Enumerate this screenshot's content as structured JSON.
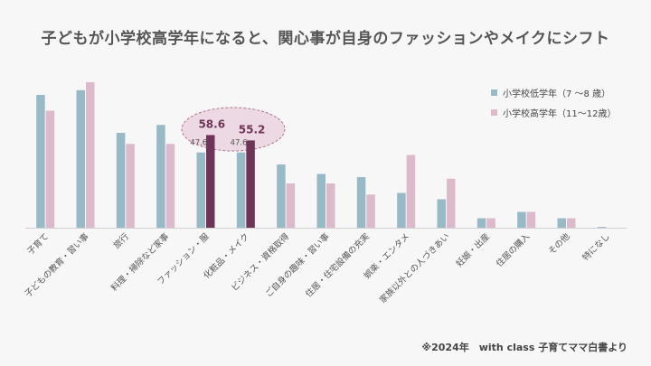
{
  "title": "子どもが小学校高学年になると、関心事が自身のファッションやメイクにシフト",
  "footer": "※2024年　with class 子育てママ白書より",
  "colors": {
    "low": "#98b9c6",
    "high": "#dcb9cb",
    "highlight": "#6f3558",
    "ellipse_fill": "#ecd9e3",
    "ellipse_stroke": "#b3728f"
  },
  "chart_data": {
    "type": "bar",
    "title": "子どもが小学校高学年になると、関心事が自身のファッションやメイクにシフト",
    "categories": [
      "子育て",
      "子どもの教育・習い事",
      "旅行",
      "料理・掃除など家事",
      "ファッション・服",
      "化粧品・メイク",
      "ビジネス・資格取得",
      "ご自身の趣味・習い事",
      "住居・住宅設備の充実",
      "娯楽・エンタメ",
      "家族以外との人づきあい",
      "妊娠・出産",
      "住居の購入",
      "その他",
      "特になし"
    ],
    "series": [
      {
        "name": "小学校低学年（7 〜8 歳）",
        "values": [
          84,
          87,
          60,
          65,
          47.6,
          47.6,
          40,
          34,
          32,
          22,
          18,
          6,
          10,
          6,
          0.5
        ]
      },
      {
        "name": "小学校高学年（11〜12歳）",
        "values": [
          74,
          92,
          53,
          53,
          58.6,
          55.2,
          28,
          28,
          21,
          46,
          31,
          6,
          10,
          6,
          0
        ]
      }
    ],
    "data_labels": [
      {
        "category": "ファッション・服",
        "low": "47.6",
        "high": "58.6"
      },
      {
        "category": "化粧品・メイク",
        "low": "47.6",
        "high": "55.2"
      }
    ],
    "highlighted_categories": [
      "ファッション・服",
      "化粧品・メイク"
    ],
    "ylim": [
      0,
      100
    ],
    "grid": false,
    "legend_position": "top-right"
  }
}
